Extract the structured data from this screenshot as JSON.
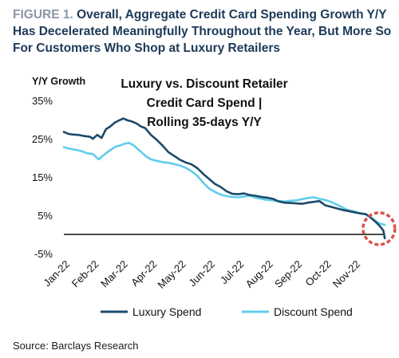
{
  "figure": {
    "label": "FIGURE 1.",
    "title": "Overall, Aggregate Credit Card Spending Growth Y/Y Has Decelerated Meaningfully Throughout the Year, But More So For Customers Who Shop at Luxury Retailers",
    "source": "Source: Barclays Research"
  },
  "colors": {
    "luxury": "#1b4a6b",
    "discount": "#5fcdec",
    "highlight_circle": "#d9534f",
    "title": "#1c3a57"
  },
  "chart_data": {
    "type": "line",
    "title_lines": [
      "Luxury vs. Discount Retailer",
      "Credit Card Spend |",
      "Rolling 35-days Y/Y"
    ],
    "xlabel": "",
    "ylabel": "Y/Y Growth",
    "ylim": [
      -5,
      35
    ],
    "y_ticks": [
      35,
      25,
      15,
      5,
      -5
    ],
    "y_tick_labels": [
      "35%",
      "25%",
      "15%",
      "5%",
      "-5%"
    ],
    "x_tick_labels": [
      "Jan-22",
      "Feb-22",
      "Mar-22",
      "Apr-22",
      "May-22",
      "Jun-22",
      "Jul-22",
      "Aug-22",
      "Sep-22",
      "Oct-22",
      "Nov-22"
    ],
    "x_unit": "months since start of Jan-22",
    "xlim": [
      0,
      11.1
    ],
    "grid": false,
    "legend_position": "bottom",
    "annotation": "dashed circle around Nov-22 end of series",
    "series": [
      {
        "name": "Luxury Spend",
        "x": [
          0,
          0.15,
          0.3,
          0.5,
          0.7,
          0.9,
          1.0,
          1.15,
          1.3,
          1.45,
          1.6,
          1.75,
          1.9,
          2.05,
          2.2,
          2.35,
          2.5,
          2.65,
          2.8,
          3.0,
          3.2,
          3.4,
          3.6,
          3.8,
          4.0,
          4.2,
          4.4,
          4.6,
          4.8,
          5.0,
          5.2,
          5.4,
          5.6,
          5.8,
          6.0,
          6.2,
          6.4,
          6.6,
          6.8,
          7.0,
          7.2,
          7.4,
          7.6,
          7.8,
          8.0,
          8.2,
          8.4,
          8.6,
          8.8,
          9.0,
          9.2,
          9.4,
          9.6,
          9.8,
          10.0,
          10.2,
          10.4,
          10.55,
          10.7,
          10.8,
          10.9,
          11.0,
          11.05
        ],
        "y": [
          26.8,
          26.3,
          26.1,
          26.0,
          25.7,
          25.5,
          25.0,
          26.0,
          25.2,
          27.5,
          28.2,
          29.2,
          29.8,
          30.3,
          29.8,
          29.5,
          29.0,
          28.2,
          27.8,
          26.0,
          24.7,
          23.2,
          21.5,
          20.5,
          19.5,
          18.8,
          18.3,
          17.3,
          15.8,
          14.5,
          13.2,
          12.4,
          11.3,
          10.6,
          10.5,
          10.7,
          10.3,
          10.1,
          9.8,
          9.6,
          9.3,
          8.6,
          8.3,
          8.2,
          8.1,
          8.0,
          8.3,
          8.5,
          8.7,
          7.6,
          7.2,
          6.8,
          6.4,
          6.1,
          5.8,
          5.5,
          5.3,
          4.5,
          3.5,
          2.8,
          2.0,
          1.0,
          -1.0
        ]
      },
      {
        "name": "Discount Spend",
        "x": [
          0,
          0.2,
          0.4,
          0.6,
          0.8,
          1.0,
          1.2,
          1.35,
          1.5,
          1.65,
          1.8,
          1.95,
          2.1,
          2.25,
          2.4,
          2.55,
          2.7,
          2.85,
          3.0,
          3.2,
          3.4,
          3.6,
          3.8,
          4.0,
          4.2,
          4.4,
          4.6,
          4.8,
          5.0,
          5.2,
          5.4,
          5.6,
          5.8,
          6.0,
          6.2,
          6.4,
          6.6,
          6.8,
          7.0,
          7.2,
          7.4,
          7.6,
          7.8,
          8.0,
          8.2,
          8.4,
          8.6,
          8.8,
          9.0,
          9.2,
          9.4,
          9.6,
          9.8,
          10.0,
          10.2,
          10.4,
          10.55,
          10.7,
          10.8,
          10.9,
          11.0,
          11.05
        ],
        "y": [
          22.8,
          22.4,
          22.1,
          21.8,
          21.2,
          21.0,
          19.6,
          20.6,
          21.5,
          22.3,
          23.0,
          23.3,
          23.7,
          23.9,
          23.3,
          22.3,
          21.3,
          20.3,
          19.6,
          19.2,
          18.9,
          18.7,
          18.4,
          18.0,
          17.4,
          16.5,
          15.3,
          13.5,
          12.0,
          11.1,
          10.4,
          10.0,
          9.8,
          9.7,
          9.9,
          10.1,
          9.6,
          9.3,
          9.0,
          8.9,
          8.7,
          8.6,
          8.8,
          8.9,
          9.2,
          9.5,
          9.7,
          9.3,
          9.0,
          8.5,
          7.8,
          7.0,
          6.3,
          6.0,
          5.5,
          5.2,
          4.5,
          3.7,
          3.2,
          2.8,
          2.6,
          2.5
        ]
      }
    ]
  }
}
